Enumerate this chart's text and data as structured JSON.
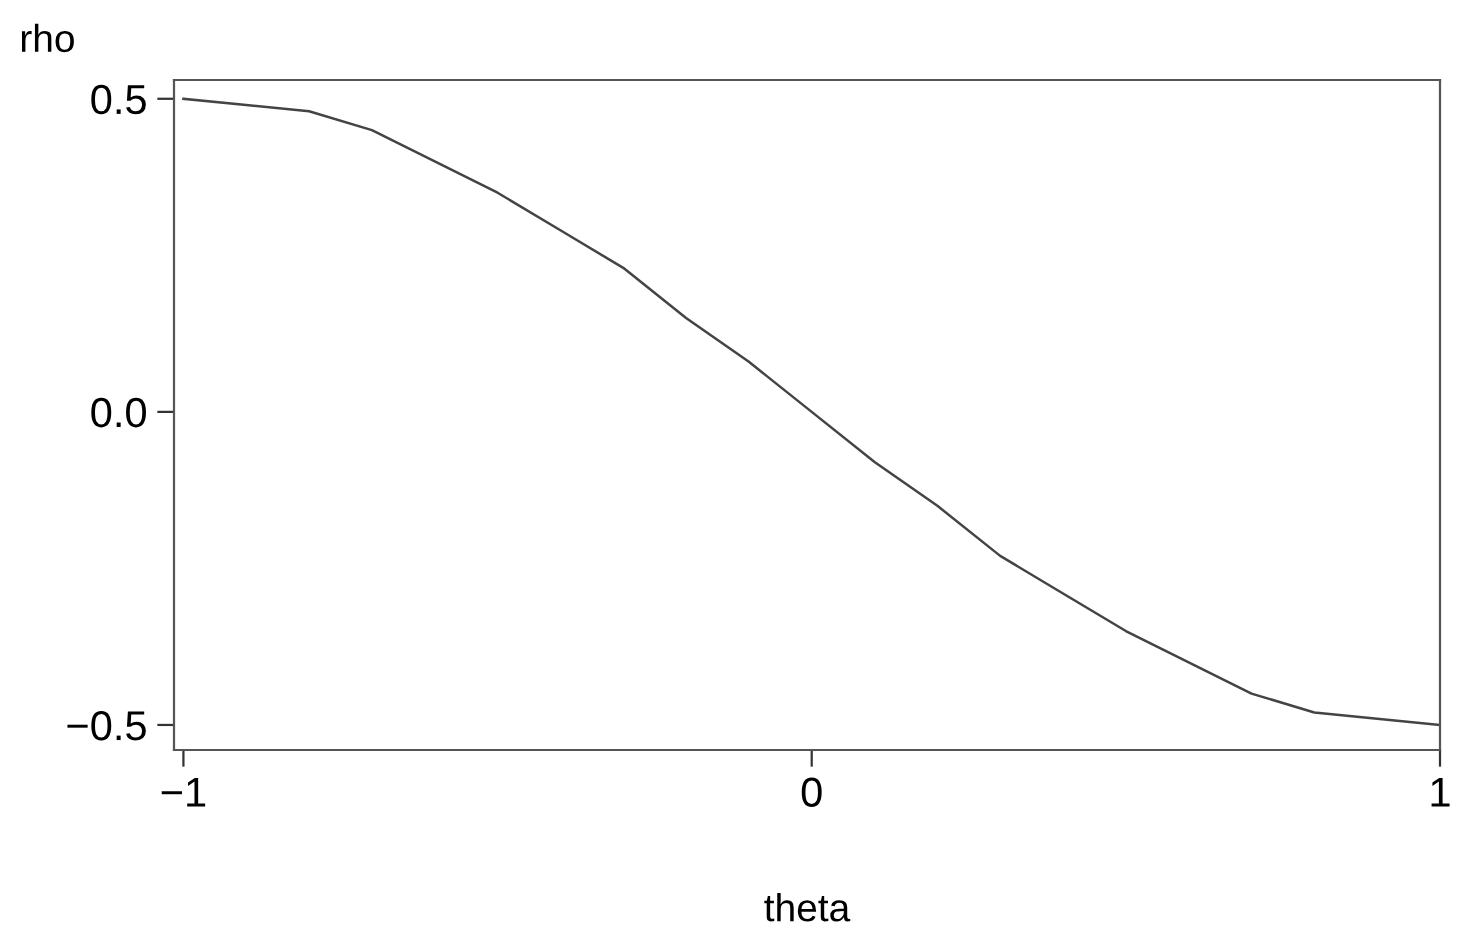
{
  "chart_data": {
    "type": "line",
    "xlabel": "theta",
    "ylabel": "rho",
    "x": [
      -1,
      -0.9,
      -0.8,
      -0.7,
      -0.6,
      -0.5,
      -0.4,
      -0.3,
      -0.2,
      -0.1,
      0,
      0.1,
      0.2,
      0.3,
      0.4,
      0.5,
      0.6,
      0.7,
      0.8,
      0.9,
      1
    ],
    "series": [
      {
        "color": "#444444",
        "values": [
          0.5,
          0.49,
          0.48,
          0.45,
          0.4,
          0.35,
          0.29,
          0.23,
          0.15,
          0.08,
          0,
          -0.08,
          -0.15,
          -0.23,
          -0.29,
          -0.35,
          -0.4,
          -0.45,
          -0.48,
          -0.49,
          -0.5
        ]
      }
    ],
    "xlim": [
      -1.015,
      1.0
    ],
    "ylim": [
      -0.54,
      0.53
    ],
    "xticks": [
      {
        "value": -1,
        "label": "−1"
      },
      0,
      1
    ],
    "yticks": [
      {
        "value": -0.5,
        "label": "−0.5"
      },
      {
        "value": 0,
        "label": "0.0"
      },
      0.5
    ],
    "grid": false,
    "legend": false,
    "marker": "none",
    "line_style": "solid"
  }
}
